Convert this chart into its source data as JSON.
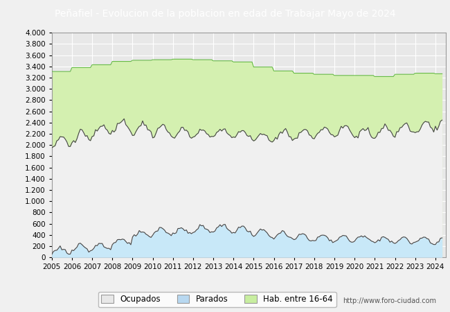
{
  "title": "Peñafiel - Evolucion de la poblacion en edad de Trabajar Mayo de 2024",
  "title_bg": "#4472c4",
  "title_color": "white",
  "ylim": [
    0,
    4000
  ],
  "yticks": [
    0,
    200,
    400,
    600,
    800,
    1000,
    1200,
    1400,
    1600,
    1800,
    2000,
    2200,
    2400,
    2600,
    2800,
    3000,
    3200,
    3400,
    3600,
    3800,
    4000
  ],
  "xstart": 2005,
  "xend": 2024.5,
  "legend_labels": [
    "Ocupados",
    "Parados",
    "Hab. entre 16-64"
  ],
  "bg_color": "#f0f0f0",
  "plot_bg": "#e8e8e8",
  "grid_color": "#ffffff",
  "url_text": "http://www.foro-ciudad.com",
  "hab_color": "#d4f0b0",
  "hab_line_color": "#66bb44",
  "parados_color": "#c8e8f8",
  "parados_line_color": "#6699cc",
  "ocupados_color": "#f0f0f0",
  "ocupados_line_color": "#444444",
  "legend_ocupados_color": "#e8e8e8",
  "legend_parados_color": "#b8d8f0",
  "legend_hab_color": "#c8eea0"
}
